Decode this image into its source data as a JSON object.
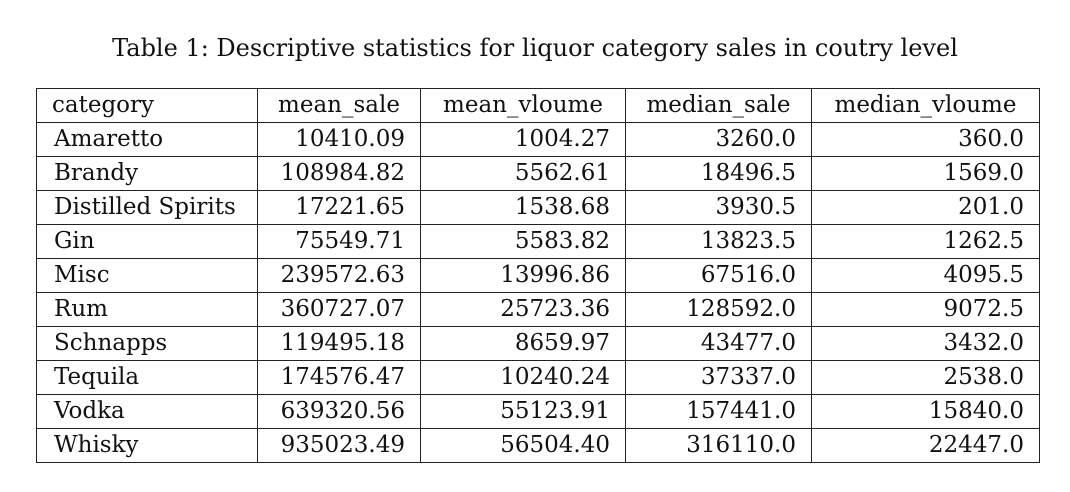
{
  "caption": "Table 1: Descriptive statistics for liquor category sales in coutry level",
  "table": {
    "headers": [
      "category",
      "mean_sale",
      "mean_vloume",
      "median_sale",
      "median_vloume"
    ],
    "rows": [
      [
        "Amaretto",
        "10410.09",
        "1004.27",
        "3260.0",
        "360.0"
      ],
      [
        "Brandy",
        "108984.82",
        "5562.61",
        "18496.5",
        "1569.0"
      ],
      [
        "Distilled Spirits",
        "17221.65",
        "1538.68",
        "3930.5",
        "201.0"
      ],
      [
        "Gin",
        "75549.71",
        "5583.82",
        "13823.5",
        "1262.5"
      ],
      [
        "Misc",
        "239572.63",
        "13996.86",
        "67516.0",
        "4095.5"
      ],
      [
        "Rum",
        "360727.07",
        "25723.36",
        "128592.0",
        "9072.5"
      ],
      [
        "Schnapps",
        "119495.18",
        "8659.97",
        "43477.0",
        "3432.0"
      ],
      [
        "Tequila",
        "174576.47",
        "10240.24",
        "37337.0",
        "2538.0"
      ],
      [
        "Vodka",
        "639320.56",
        "55123.91",
        "157441.0",
        "15840.0"
      ],
      [
        "Whisky",
        "935023.49",
        "56504.40",
        "316110.0",
        "22447.0"
      ]
    ]
  }
}
